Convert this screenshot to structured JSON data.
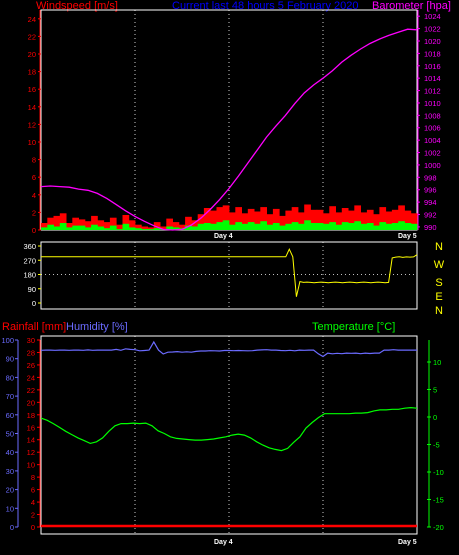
{
  "header": {
    "wind_label": "Windspeed [m/s]",
    "title": "Current last 48 hours 5 February 2020",
    "baro_label": "Barometer [hpa]"
  },
  "lower_header": {
    "rain_label": "Rainfall [mm]",
    "humidity_label": "Humidity [%]",
    "temp_label": "Temperature [°C]"
  },
  "colors": {
    "wind": "#ff0000",
    "gust": "#00ff00",
    "barometer": "#ff00ff",
    "title": "#0000ff",
    "direction": "#ffff00",
    "humidity": "#6b6bff",
    "temperature": "#00ff00",
    "rain": "#ff0000",
    "grid": "#ffffff"
  },
  "chart_data": [
    {
      "type": "area",
      "name": "wind_barometer",
      "title": "Current last 48 hours 5 February 2020",
      "x_ticks": [
        "Day 4",
        "Day 5"
      ],
      "left_axis": {
        "label": "Windspeed [m/s]",
        "ticks": [
          0,
          2,
          4,
          6,
          8,
          10,
          12,
          14,
          16,
          18,
          20,
          22,
          24
        ],
        "range": [
          0,
          25
        ]
      },
      "right_axis": {
        "label": "Barometer [hpa]",
        "ticks": [
          990,
          992,
          994,
          996,
          998,
          1000,
          1002,
          1004,
          1006,
          1008,
          1010,
          1012,
          1014,
          1016,
          1018,
          1020,
          1022,
          1024
        ],
        "range": [
          989.5,
          1025
        ]
      },
      "series": [
        {
          "axis": "right",
          "values": [
            996.5,
            996.6,
            996.5,
            996.4,
            996.1,
            995.9,
            995.4,
            994.6,
            993.6,
            992.6,
            991.7,
            990.9,
            990.2,
            989.6,
            989.5,
            989.6,
            990.3,
            991.4,
            992.8,
            994.4,
            996.2,
            998.2,
            1000.3,
            1002.4,
            1004.5,
            1006.3,
            1008.0,
            1009.9,
            1011.6,
            1012.9,
            1014.0,
            1015.2,
            1016.6,
            1017.7,
            1018.7,
            1019.6,
            1020.3,
            1020.9,
            1021.4,
            1021.9,
            1021.8
          ]
        },
        {
          "axis": "left",
          "values": [
            0.8,
            1.4,
            1.6,
            1.9,
            0.8,
            1.4,
            1.2,
            1.0,
            1.6,
            1.1,
            0.9,
            1.4,
            0.6,
            1.7,
            1.1,
            0.6,
            0.4,
            0.3,
            0.9,
            0.4,
            1.3,
            0.9,
            0.6,
            1.5,
            1.1,
            1.8,
            2.5,
            2.2,
            2.6,
            2.8,
            2.0,
            2.6,
            1.9,
            2.4,
            2.1,
            2.6,
            1.8,
            2.4,
            1.6,
            2.2,
            2.6,
            2.0,
            2.9,
            2.3,
            2.3,
            1.9,
            2.7,
            2.0,
            2.5,
            2.2,
            2.8,
            2.0,
            2.3,
            1.8,
            2.6,
            2.1,
            2.3,
            2.8,
            2.2,
            1.9
          ]
        },
        {
          "axis": "left",
          "values": [
            0.3,
            0.6,
            0.4,
            0.8,
            0.3,
            0.5,
            0.5,
            0.3,
            0.6,
            0.4,
            0.2,
            0.5,
            0.1,
            0.7,
            0.3,
            0.2,
            0.1,
            0.1,
            0.2,
            0.1,
            0.4,
            0.3,
            0.2,
            0.5,
            0.4,
            0.7,
            0.8,
            0.7,
            0.9,
            1.1,
            0.6,
            0.9,
            0.7,
            0.9,
            0.7,
            1.0,
            0.6,
            0.8,
            0.5,
            0.7,
            0.9,
            0.7,
            1.1,
            0.8,
            0.8,
            0.7,
            0.9,
            0.6,
            0.9,
            0.8,
            1.0,
            0.7,
            0.8,
            0.5,
            0.9,
            0.7,
            0.8,
            1.0,
            0.8,
            0.7
          ]
        }
      ]
    },
    {
      "type": "line",
      "name": "wind_direction",
      "left_ticks": [
        360,
        270,
        180,
        90,
        0
      ],
      "right_ticks": [
        "N",
        "W",
        "S",
        "E",
        "N"
      ],
      "range": [
        0,
        360
      ],
      "series": [
        {
          "values": [
            292,
            292,
            292,
            292,
            292,
            292,
            292,
            292,
            292,
            292,
            292,
            292,
            292,
            292,
            292,
            292,
            292,
            292,
            292,
            292,
            292,
            292,
            292,
            292,
            292,
            292,
            292,
            292,
            292,
            292,
            292,
            292,
            292,
            292,
            292,
            292,
            292,
            292,
            292,
            292,
            292,
            292,
            292,
            292,
            292,
            292,
            292,
            292,
            292,
            292,
            292,
            292,
            292,
            292,
            292,
            292,
            292,
            292,
            292,
            292,
            292,
            292,
            292,
            292,
            292,
            292,
            292,
            292,
            292,
            292,
            340,
            292,
            40,
            135,
            130,
            132,
            130,
            128,
            130,
            132,
            130,
            128,
            130,
            132,
            130,
            128,
            130,
            132,
            130,
            128,
            130,
            132,
            130,
            128,
            130,
            132,
            130,
            128,
            130,
            285,
            290,
            292,
            288,
            291,
            290,
            291,
            305
          ]
        }
      ]
    },
    {
      "type": "line",
      "name": "rain_humidity_temperature",
      "x_ticks": [
        "Day 4",
        "Day 5"
      ],
      "humidity_axis": {
        "label": "Humidity [%]",
        "ticks": [
          0,
          10,
          20,
          30,
          40,
          50,
          60,
          70,
          80,
          90,
          100
        ],
        "range": [
          0,
          100
        ]
      },
      "rain_axis": {
        "label": "Rainfall [mm]",
        "ticks": [
          0,
          2,
          4,
          6,
          8,
          10,
          12,
          14,
          16,
          18,
          20,
          22,
          24,
          26,
          28,
          30
        ],
        "range": [
          0,
          30
        ]
      },
      "temperature_axis": {
        "label": "Temperature [°C]",
        "ticks": [
          10,
          5,
          0,
          -5,
          -10,
          -15,
          -20
        ],
        "range": [
          -20,
          14
        ]
      },
      "series": [
        {
          "values": [
            94.5,
            94.6,
            94.6,
            94.5,
            94.6,
            94.6,
            94.5,
            94.6,
            94.6,
            94.5,
            94.7,
            94.5,
            94.6,
            94.6,
            94.6,
            94.6,
            95.0,
            94.5,
            95.3,
            95.0,
            94.8,
            94.2,
            94.4,
            94.6,
            99.0,
            94.6,
            92.5,
            93.5,
            93.6,
            93.8,
            93.5,
            93.7,
            93.5,
            93.9,
            94.1,
            94.1,
            94.3,
            94.2,
            94.1,
            94.4,
            94.4,
            94.3,
            94.4,
            94.3,
            94.2,
            94.3,
            94.6,
            94.7,
            94.8,
            94.6,
            94.6,
            94.4,
            94.3,
            94.5,
            94.2,
            94.6,
            94.5,
            94.6,
            94.6,
            92.6,
            91.2,
            93.0,
            92.6,
            92.9,
            92.7,
            93.0,
            92.9,
            93.0,
            92.7,
            93.0,
            92.8,
            93.0,
            93.0,
            94.6,
            94.6,
            94.8,
            94.6,
            94.6,
            94.6,
            94.6,
            94.6
          ]
        },
        {
          "values": [
            0,
            0,
            0,
            0,
            0,
            0,
            0,
            0,
            0,
            0,
            0,
            0,
            0,
            0,
            0,
            0,
            0,
            0,
            0,
            0,
            0,
            0,
            0,
            0,
            0,
            0,
            0,
            0,
            0,
            0,
            0,
            0,
            0,
            0,
            0,
            0,
            0,
            0,
            0,
            0,
            0,
            0,
            0,
            0,
            0,
            0,
            0,
            0,
            0,
            0,
            0,
            0,
            0,
            0,
            0,
            0,
            0,
            0,
            0,
            0,
            0,
            0,
            0,
            0,
            0,
            0,
            0,
            0,
            0,
            0,
            0,
            0,
            0,
            0,
            0,
            0,
            0,
            0,
            0,
            0,
            0
          ]
        },
        {
          "values": [
            -0.2,
            -0.6,
            -1.2,
            -1.9,
            -2.6,
            -3.2,
            -3.8,
            -4.3,
            -4.8,
            -4.5,
            -3.8,
            -2.6,
            -1.6,
            -1.2,
            -1.2,
            -1.1,
            -1.2,
            -1.1,
            -1.6,
            -2.5,
            -3.0,
            -3.6,
            -3.9,
            -4.0,
            -4.1,
            -4.2,
            -4.2,
            -4.1,
            -4.0,
            -3.8,
            -3.6,
            -3.3,
            -3.1,
            -3.3,
            -3.8,
            -4.5,
            -5.1,
            -5.6,
            -5.9,
            -6.1,
            -5.7,
            -4.6,
            -3.6,
            -2.0,
            -1.0,
            -0.1,
            0.6,
            0.6,
            0.6,
            0.6,
            0.6,
            0.7,
            0.7,
            0.8,
            1.1,
            1.3,
            1.3,
            1.4,
            1.4,
            1.6,
            1.7,
            1.6
          ]
        }
      ]
    }
  ]
}
